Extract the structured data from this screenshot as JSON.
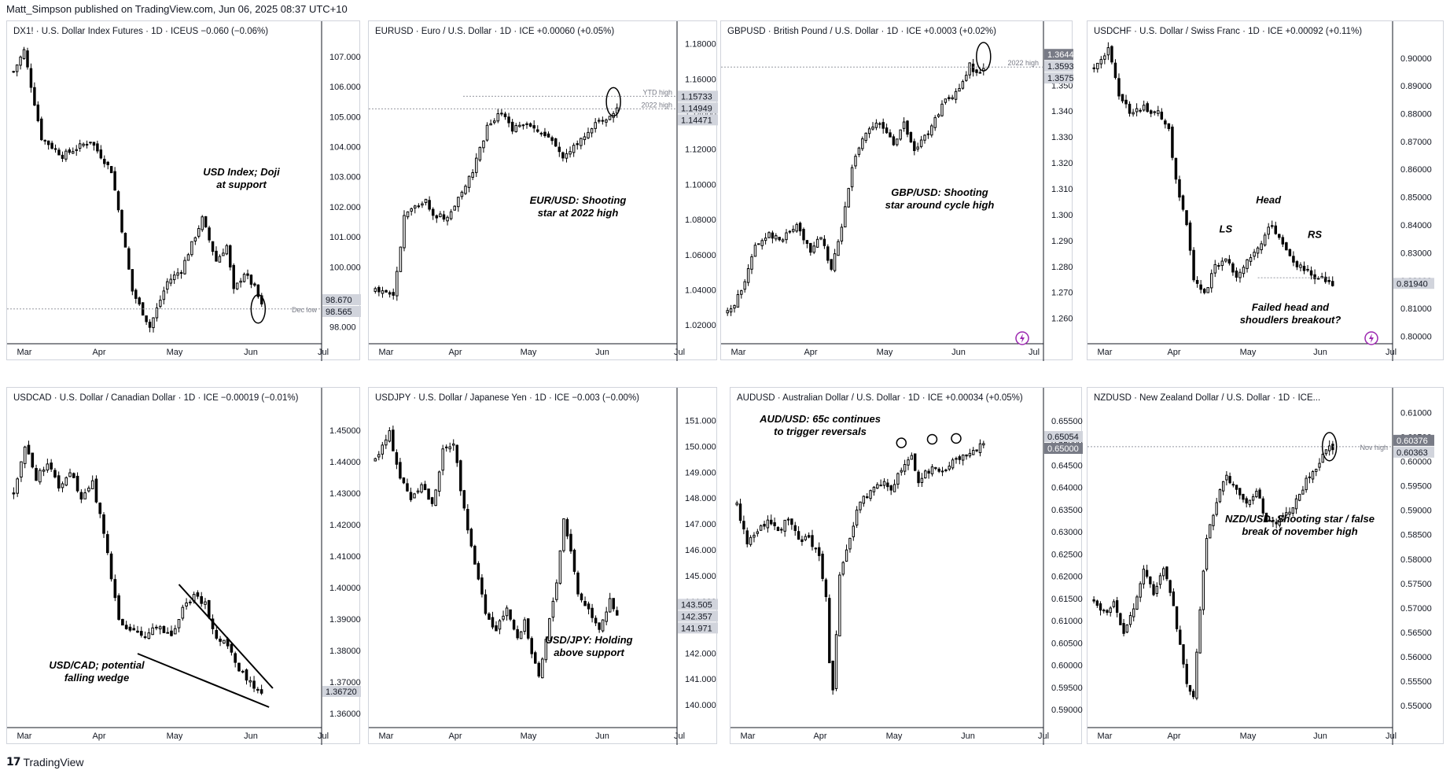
{
  "header": {
    "publisher": "Matt_Simpson published on TradingView.com, Jun 06, 2025 08:37 UTC+10"
  },
  "footer": {
    "brand": "TradingView",
    "logo": "tradingview-logo-icon"
  },
  "colors": {
    "candle": "#000000",
    "axis": "#131722",
    "grid_dotted": "#9598a1",
    "price_label_bg": "#d1d4dc",
    "price_label_dark": "#787b86",
    "lightning": "#9c27b0"
  },
  "chart_data": [
    {
      "type": "candlestick",
      "symbol": "DX1!",
      "title": "DX1! · U.S. Dollar Index Futures · 1D · ICEUS",
      "change": "−0.060 (−0.06%)",
      "x_ticks": [
        "Mar",
        "Apr",
        "May",
        "Jun",
        "Jul"
      ],
      "y_ticks": [
        "107.000",
        "106.000",
        "105.000",
        "104.000",
        "103.000",
        "102.000",
        "101.000",
        "100.000",
        "99.000",
        "98.000"
      ],
      "ylim": [
        97.6,
        107.6
      ],
      "annotation": [
        "USD Index; Doji",
        "at support"
      ],
      "hline_label": "Dec low",
      "price_labels": [
        {
          "text": "98.670",
          "dark": false
        },
        {
          "text": "98.565",
          "dark": false
        }
      ],
      "anchors": [
        [
          0,
          106.5
        ],
        [
          3,
          107.2
        ],
        [
          8,
          104.3
        ],
        [
          14,
          103.7
        ],
        [
          22,
          104.2
        ],
        [
          28,
          103.2
        ],
        [
          32,
          100.6
        ],
        [
          34,
          99.2
        ],
        [
          39,
          98.0
        ],
        [
          44,
          99.5
        ],
        [
          48,
          99.9
        ],
        [
          54,
          101.6
        ],
        [
          58,
          100.2
        ],
        [
          61,
          100.7
        ],
        [
          63,
          99.2
        ],
        [
          66,
          99.8
        ],
        [
          69,
          99.3
        ],
        [
          71,
          98.7
        ]
      ],
      "circle": [
        70,
        98.6
      ]
    },
    {
      "type": "candlestick",
      "symbol": "EURUSD",
      "title": "EURUSD · Euro / U.S. Dollar · 1D · ICE",
      "change": "+0.00060 (+0.05%)",
      "x_ticks": [
        "Mar",
        "Apr",
        "May",
        "Jun",
        "Jul"
      ],
      "y_ticks": [
        "1.18000",
        "1.16000",
        "1.14000",
        "1.12000",
        "1.10000",
        "1.08000",
        "1.06000",
        "1.04000",
        "1.02000"
      ],
      "ylim": [
        1.012,
        1.183
      ],
      "annotation": [
        "EUR/USD: Shooting",
        "star at 2022 high"
      ],
      "line_labels": [
        "YTD high",
        "2022 high"
      ],
      "price_labels": [
        {
          "text": "1.15733",
          "dark": false
        },
        {
          "text": "1.14949",
          "dark": false
        },
        {
          "text": "1.14471",
          "dark": false
        }
      ],
      "anchors": [
        [
          0,
          1.04
        ],
        [
          5,
          1.036
        ],
        [
          8,
          1.081
        ],
        [
          14,
          1.092
        ],
        [
          16,
          1.083
        ],
        [
          20,
          1.081
        ],
        [
          24,
          1.096
        ],
        [
          27,
          1.107
        ],
        [
          31,
          1.132
        ],
        [
          35,
          1.141
        ],
        [
          38,
          1.132
        ],
        [
          42,
          1.136
        ],
        [
          46,
          1.128
        ],
        [
          49,
          1.125
        ],
        [
          52,
          1.116
        ],
        [
          55,
          1.122
        ],
        [
          58,
          1.128
        ],
        [
          61,
          1.134
        ],
        [
          64,
          1.138
        ],
        [
          66,
          1.142
        ],
        [
          67,
          1.143
        ]
      ],
      "circle": [
        66,
        1.147
      ]
    },
    {
      "type": "candlestick",
      "symbol": "GBPUSD",
      "title": "GBPUSD · British Pound / U.S. Dollar · 1D · ICE",
      "change": "+0.0003 (+0.02%)",
      "x_ticks": [
        "Mar",
        "Apr",
        "May",
        "Jun",
        "Jul"
      ],
      "y_ticks": [
        "1.3500",
        "1.3400",
        "1.3300",
        "1.3200",
        "1.3100",
        "1.3000",
        "1.2900",
        "1.2800",
        "1.2700",
        "1.2600"
      ],
      "ylim": [
        1.252,
        1.368
      ],
      "annotation": [
        "GBP/USD: Shooting",
        "star around cycle high"
      ],
      "line_labels": [
        "2022 high"
      ],
      "price_labels": [
        {
          "text": "1.3644",
          "dark": true
        },
        {
          "text": "1.3593",
          "dark": false
        },
        {
          "text": "1.3575",
          "dark": false
        }
      ],
      "anchors": [
        [
          0,
          1.262
        ],
        [
          4,
          1.27
        ],
        [
          8,
          1.288
        ],
        [
          12,
          1.292
        ],
        [
          16,
          1.291
        ],
        [
          20,
          1.296
        ],
        [
          24,
          1.286
        ],
        [
          27,
          1.292
        ],
        [
          30,
          1.278
        ],
        [
          33,
          1.296
        ],
        [
          36,
          1.318
        ],
        [
          40,
          1.332
        ],
        [
          44,
          1.335
        ],
        [
          48,
          1.327
        ],
        [
          51,
          1.335
        ],
        [
          54,
          1.325
        ],
        [
          57,
          1.33
        ],
        [
          60,
          1.337
        ],
        [
          63,
          1.344
        ],
        [
          66,
          1.347
        ],
        [
          68,
          1.351
        ],
        [
          70,
          1.358
        ],
        [
          72,
          1.354
        ],
        [
          74,
          1.357
        ]
      ],
      "circle": [
        74,
        1.361
      ],
      "lightning": true
    },
    {
      "type": "candlestick",
      "symbol": "USDCHF",
      "title": "USDCHF · U.S. Dollar / Swiss Franc · 1D · ICE",
      "change": "+0.00092 (+0.11%)",
      "x_ticks": [
        "Mar",
        "Apr",
        "May",
        "Jun",
        "Jul"
      ],
      "y_ticks": [
        "0.90000",
        "0.89000",
        "0.88000",
        "0.87000",
        "0.86000",
        "0.85000",
        "0.84000",
        "0.83000",
        "0.82000",
        "0.81000",
        "0.80000"
      ],
      "ylim": [
        0.799,
        0.907
      ],
      "annotation": [
        "Failed head and",
        "shoudlers breakout?"
      ],
      "labels": [
        "LS",
        "Head",
        "RS"
      ],
      "price_labels": [
        {
          "text": "0.81940",
          "dark": false
        }
      ],
      "anchors": [
        [
          0,
          0.897
        ],
        [
          4,
          0.903
        ],
        [
          7,
          0.887
        ],
        [
          10,
          0.881
        ],
        [
          14,
          0.882
        ],
        [
          18,
          0.88
        ],
        [
          21,
          0.874
        ],
        [
          23,
          0.856
        ],
        [
          26,
          0.84
        ],
        [
          28,
          0.82
        ],
        [
          31,
          0.815
        ],
        [
          34,
          0.825
        ],
        [
          37,
          0.828
        ],
        [
          40,
          0.822
        ],
        [
          43,
          0.827
        ],
        [
          46,
          0.831
        ],
        [
          49,
          0.84
        ],
        [
          52,
          0.836
        ],
        [
          55,
          0.828
        ],
        [
          58,
          0.825
        ],
        [
          61,
          0.822
        ],
        [
          64,
          0.821
        ],
        [
          67,
          0.819
        ]
      ],
      "lightning": true
    },
    {
      "type": "candlestick",
      "symbol": "USDCAD",
      "title": "USDCAD · U.S. Dollar / Canadian Dollar · 1D · ICE",
      "change": "−0.00019 (−0.01%)",
      "x_ticks": [
        "Mar",
        "Apr",
        "May",
        "Jun",
        "Jul"
      ],
      "y_ticks": [
        "1.45000",
        "1.44000",
        "1.43000",
        "1.42000",
        "1.41000",
        "1.40000",
        "1.39000",
        "1.38000",
        "1.37000",
        "1.36000"
      ],
      "ylim": [
        1.357,
        1.458
      ],
      "annotation": [
        "USD/CAD; potential",
        "falling wedge"
      ],
      "price_labels": [
        {
          "text": "1.36720",
          "dark": false
        }
      ],
      "anchors": [
        [
          0,
          1.43
        ],
        [
          3,
          1.445
        ],
        [
          6,
          1.435
        ],
        [
          9,
          1.44
        ],
        [
          12,
          1.432
        ],
        [
          15,
          1.437
        ],
        [
          18,
          1.428
        ],
        [
          21,
          1.433
        ],
        [
          24,
          1.418
        ],
        [
          26,
          1.403
        ],
        [
          28,
          1.39
        ],
        [
          31,
          1.386
        ],
        [
          35,
          1.385
        ],
        [
          39,
          1.388
        ],
        [
          42,
          1.384
        ],
        [
          45,
          1.393
        ],
        [
          48,
          1.397
        ],
        [
          51,
          1.395
        ],
        [
          54,
          1.383
        ],
        [
          57,
          1.382
        ],
        [
          60,
          1.374
        ],
        [
          63,
          1.37
        ],
        [
          66,
          1.367
        ]
      ]
    },
    {
      "type": "candlestick",
      "symbol": "USDJPY",
      "title": "USDJPY · U.S. Dollar / Japanese Yen · 1D · ICE",
      "change": "−0.003 (−0.00%)",
      "x_ticks": [
        "Mar",
        "Apr",
        "May",
        "Jun",
        "Jul"
      ],
      "y_ticks": [
        "151.000",
        "150.000",
        "149.000",
        "148.000",
        "147.000",
        "146.000",
        "145.000",
        "144.000",
        "143.000",
        "142.000",
        "141.000",
        "140.000"
      ],
      "ylim": [
        139.3,
        151.6
      ],
      "annotation": [
        "USD/JPY: Holding",
        "above support"
      ],
      "price_labels": [
        {
          "text": "143.505",
          "dark": false
        },
        {
          "text": "142.357",
          "dark": false
        },
        {
          "text": "141.971",
          "dark": false
        }
      ],
      "anchors": [
        [
          0,
          149.5
        ],
        [
          4,
          150.5
        ],
        [
          7,
          148.8
        ],
        [
          10,
          148.0
        ],
        [
          13,
          148.6
        ],
        [
          16,
          147.7
        ],
        [
          19,
          149.8
        ],
        [
          22,
          150.2
        ],
        [
          25,
          147.5
        ],
        [
          28,
          145.5
        ],
        [
          31,
          143.5
        ],
        [
          34,
          142.8
        ],
        [
          37,
          143.8
        ],
        [
          40,
          142.5
        ],
        [
          42,
          143.3
        ],
        [
          44,
          142.0
        ],
        [
          46,
          141.0
        ],
        [
          48,
          142.5
        ],
        [
          51,
          144.8
        ],
        [
          53,
          147.2
        ],
        [
          55,
          146.0
        ],
        [
          57,
          144.3
        ],
        [
          60,
          143.7
        ],
        [
          63,
          143.0
        ],
        [
          66,
          144.0
        ],
        [
          68,
          143.4
        ]
      ]
    },
    {
      "type": "candlestick",
      "symbol": "AUDUSD",
      "title": "AUDUSD · Australian Dollar / U.S. Dollar · 1D · ICE",
      "change": "+0.00034 (+0.05%)",
      "x_ticks": [
        "Mar",
        "Apr",
        "May",
        "Jun",
        "Jul"
      ],
      "y_ticks": [
        "0.65500",
        "0.65000",
        "0.64500",
        "0.64000",
        "0.63500",
        "0.63000",
        "0.62500",
        "0.62000",
        "0.61500",
        "0.61000",
        "0.60500",
        "0.60000",
        "0.59500",
        "0.59000"
      ],
      "ylim": [
        0.587,
        0.6585
      ],
      "annotation": [
        "AUD/USD: 65c continues",
        "to trigger reversals"
      ],
      "price_labels": [
        {
          "text": "0.65054",
          "dark": false
        },
        {
          "text": "0.65000",
          "dark": true
        }
      ],
      "anchors": [
        [
          0,
          0.636
        ],
        [
          3,
          0.627
        ],
        [
          6,
          0.63
        ],
        [
          9,
          0.632
        ],
        [
          12,
          0.63
        ],
        [
          15,
          0.633
        ],
        [
          18,
          0.628
        ],
        [
          21,
          0.629
        ],
        [
          24,
          0.624
        ],
        [
          26,
          0.616
        ],
        [
          27,
          0.601
        ],
        [
          28,
          0.595
        ],
        [
          30,
          0.62
        ],
        [
          33,
          0.629
        ],
        [
          36,
          0.637
        ],
        [
          39,
          0.639
        ],
        [
          42,
          0.641
        ],
        [
          45,
          0.64
        ],
        [
          48,
          0.644
        ],
        [
          51,
          0.647
        ],
        [
          53,
          0.641
        ],
        [
          55,
          0.643
        ],
        [
          58,
          0.645
        ],
        [
          60,
          0.643
        ],
        [
          63,
          0.646
        ],
        [
          66,
          0.647
        ],
        [
          69,
          0.648
        ],
        [
          72,
          0.65
        ]
      ],
      "circles": [
        [
          48,
          0.65
        ],
        [
          57,
          0.6508
        ],
        [
          64,
          0.651
        ]
      ]
    },
    {
      "type": "candlestick",
      "symbol": "NZDUSD",
      "title": "NZDUSD · New Zealand Dollar / U.S. Dollar · 1D · ICE...",
      "change": "",
      "x_ticks": [
        "Mar",
        "Apr",
        "May",
        "Jun",
        "Jul"
      ],
      "y_ticks": [
        "0.61000",
        "0.60500",
        "0.60000",
        "0.59500",
        "0.59000",
        "0.58500",
        "0.58000",
        "0.57500",
        "0.57000",
        "0.56500",
        "0.56000",
        "0.55500",
        "0.55000"
      ],
      "ylim": [
        0.5465,
        0.6115
      ],
      "annotation": [
        "NZD/USD: Shooting star / false",
        "break of november high"
      ],
      "hline_label": "Nov high",
      "price_labels": [
        {
          "text": "0.60376",
          "dark": true
        },
        {
          "text": "0.60363",
          "dark": false
        }
      ],
      "anchors": [
        [
          0,
          0.572
        ],
        [
          3,
          0.569
        ],
        [
          6,
          0.571
        ],
        [
          9,
          0.565
        ],
        [
          12,
          0.57
        ],
        [
          15,
          0.578
        ],
        [
          18,
          0.573
        ],
        [
          21,
          0.578
        ],
        [
          24,
          0.57
        ],
        [
          26,
          0.562
        ],
        [
          28,
          0.554
        ],
        [
          30,
          0.552
        ],
        [
          32,
          0.57
        ],
        [
          34,
          0.584
        ],
        [
          37,
          0.592
        ],
        [
          40,
          0.597
        ],
        [
          43,
          0.594
        ],
        [
          46,
          0.592
        ],
        [
          49,
          0.594
        ],
        [
          52,
          0.588
        ],
        [
          55,
          0.587
        ],
        [
          58,
          0.589
        ],
        [
          61,
          0.592
        ],
        [
          64,
          0.596
        ],
        [
          67,
          0.599
        ],
        [
          70,
          0.602
        ],
        [
          72,
          0.603
        ]
      ],
      "circle": [
        71,
        0.603
      ]
    }
  ]
}
